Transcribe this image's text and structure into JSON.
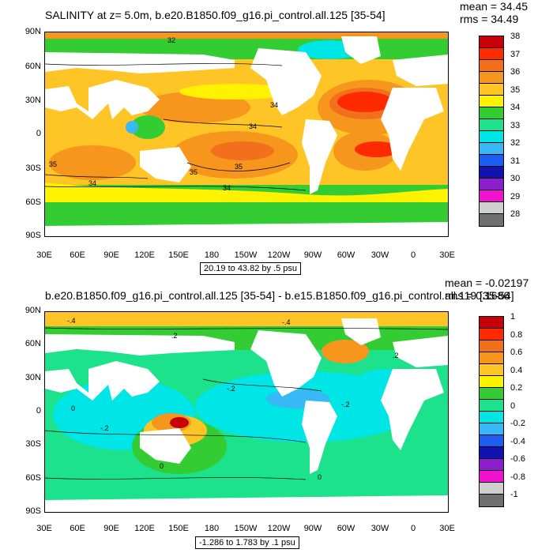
{
  "panel1": {
    "title": "SALINITY at z=   5.0m, b.e20.B1850.f09_g16.pi_control.all.125 [35-54]",
    "mean": "mean = 34.45",
    "rms": "rms = 34.49",
    "range": "20.19 to 43.82 by .5 psu",
    "lat_labels": [
      "90N",
      "60N",
      "30N",
      "0",
      "30S",
      "60S",
      "90S"
    ],
    "lon_labels": [
      "30E",
      "60E",
      "90E",
      "120E",
      "150E",
      "180",
      "150W",
      "120W",
      "90W",
      "60W",
      "30W",
      "0",
      "30E"
    ],
    "contour_labels": [
      "32",
      "34",
      "34",
      "35",
      "35",
      "34",
      "34",
      "35"
    ],
    "colorbar": {
      "labels": [
        "38",
        "37",
        "36",
        "35",
        "34",
        "33",
        "32",
        "31",
        "30",
        "29",
        "28"
      ],
      "colors": [
        "#c8000a",
        "#ff2a00",
        "#f26f1c",
        "#f7961d",
        "#ffc425",
        "#fff200",
        "#33cc33",
        "#1ce28c",
        "#00e5e5",
        "#38b8f5",
        "#1c5ef2",
        "#1212b0",
        "#8b1fce",
        "#f012d0",
        "#cfcfcf",
        "#6f6f6f"
      ]
    }
  },
  "panel2": {
    "title": "b.e20.B1850.f09_g16.pi_control.all.125 [35-54] - b.e15.B1850.f09_g16.pi_control.all.119 [35-54]",
    "mean": "mean = -0.02197",
    "rms": "rms = 0.1686",
    "range": "-1.286 to 1.783 by .1 psu",
    "lat_labels": [
      "90N",
      "60N",
      "30N",
      "0",
      "30S",
      "60S",
      "90S"
    ],
    "lon_labels": [
      "30E",
      "60E",
      "90E",
      "120E",
      "150E",
      "180",
      "150W",
      "120W",
      "90W",
      "60W",
      "30W",
      "0",
      "30E"
    ],
    "contour_labels": [
      "-.4",
      "-.4",
      ".2",
      ".2",
      "-.2",
      "-.2",
      "0",
      "0",
      "0",
      "-.2"
    ],
    "colorbar": {
      "labels": [
        "1",
        "0.8",
        "0.6",
        "0.4",
        "0.2",
        "0",
        "-0.2",
        "-0.4",
        "-0.6",
        "-0.8",
        "-1"
      ],
      "colors": [
        "#c8000a",
        "#ff2a00",
        "#f26f1c",
        "#f7961d",
        "#ffc425",
        "#fff200",
        "#33cc33",
        "#1ce28c",
        "#00e5e5",
        "#38b8f5",
        "#1c5ef2",
        "#1212b0",
        "#8b1fce",
        "#f012d0",
        "#cfcfcf",
        "#6f6f6f"
      ]
    }
  }
}
